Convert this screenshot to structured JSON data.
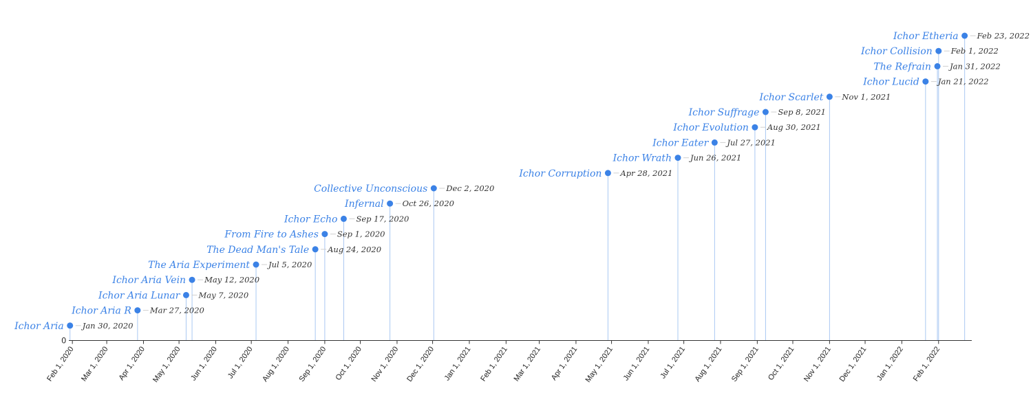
{
  "chart_data": {
    "type": "timeline",
    "title": "",
    "xlabel": "",
    "ylabel": "",
    "y_tick_label": "0",
    "x_range": [
      "2020-01-29",
      "2022-03-01"
    ],
    "x_ticks": [
      {
        "date": "2020-02-01",
        "label": "Feb 1, 2020"
      },
      {
        "date": "2020-03-01",
        "label": "Mar 1, 2020"
      },
      {
        "date": "2020-04-01",
        "label": "Apr 1, 2020"
      },
      {
        "date": "2020-05-01",
        "label": "May 1, 2020"
      },
      {
        "date": "2020-06-01",
        "label": "Jun 1, 2020"
      },
      {
        "date": "2020-07-01",
        "label": "Jul 1, 2020"
      },
      {
        "date": "2020-08-01",
        "label": "Aug 1, 2020"
      },
      {
        "date": "2020-09-01",
        "label": "Sep 1, 2020"
      },
      {
        "date": "2020-10-01",
        "label": "Oct 1, 2020"
      },
      {
        "date": "2020-11-01",
        "label": "Nov 1, 2020"
      },
      {
        "date": "2020-12-01",
        "label": "Dec 1, 2020"
      },
      {
        "date": "2021-01-01",
        "label": "Jan 1, 2021"
      },
      {
        "date": "2021-02-01",
        "label": "Feb 1, 2021"
      },
      {
        "date": "2021-03-01",
        "label": "Mar 1, 2021"
      },
      {
        "date": "2021-04-01",
        "label": "Apr 1, 2021"
      },
      {
        "date": "2021-05-01",
        "label": "May 1, 2021"
      },
      {
        "date": "2021-06-01",
        "label": "Jun 1, 2021"
      },
      {
        "date": "2021-07-01",
        "label": "Jul 1, 2021"
      },
      {
        "date": "2021-08-01",
        "label": "Aug 1, 2021"
      },
      {
        "date": "2021-09-01",
        "label": "Sep 1, 2021"
      },
      {
        "date": "2021-10-01",
        "label": "Oct 1, 2021"
      },
      {
        "date": "2021-11-01",
        "label": "Nov 1, 2021"
      },
      {
        "date": "2021-12-01",
        "label": "Dec 1, 2021"
      },
      {
        "date": "2022-01-01",
        "label": "Jan 1, 2022"
      },
      {
        "date": "2022-02-01",
        "label": "Feb 1, 2022"
      }
    ],
    "events": [
      {
        "name": "Ichor Aria",
        "date": "2020-01-30",
        "date_label": "Jan 30, 2020"
      },
      {
        "name": "Ichor Aria R",
        "date": "2020-03-27",
        "date_label": "Mar 27, 2020"
      },
      {
        "name": "Ichor Aria Lunar",
        "date": "2020-05-07",
        "date_label": "May 7, 2020"
      },
      {
        "name": "Ichor Aria Vein",
        "date": "2020-05-12",
        "date_label": "May 12, 2020"
      },
      {
        "name": "The Aria Experiment",
        "date": "2020-07-05",
        "date_label": "Jul 5, 2020"
      },
      {
        "name": "The Dead Man's Tale",
        "date": "2020-08-24",
        "date_label": "Aug 24, 2020"
      },
      {
        "name": "From Fire to Ashes",
        "date": "2020-09-01",
        "date_label": "Sep 1, 2020"
      },
      {
        "name": "Ichor Echo",
        "date": "2020-09-17",
        "date_label": "Sep 17, 2020"
      },
      {
        "name": "Infernal",
        "date": "2020-10-26",
        "date_label": "Oct 26, 2020"
      },
      {
        "name": "Collective Unconscious",
        "date": "2020-12-02",
        "date_label": "Dec 2, 2020"
      },
      {
        "name": "Ichor Corruption",
        "date": "2021-04-28",
        "date_label": "Apr 28, 2021"
      },
      {
        "name": "Ichor Wrath",
        "date": "2021-06-26",
        "date_label": "Jun 26, 2021"
      },
      {
        "name": "Ichor Eater",
        "date": "2021-07-27",
        "date_label": "Jul 27, 2021"
      },
      {
        "name": "Ichor Evolution",
        "date": "2021-08-30",
        "date_label": "Aug 30, 2021"
      },
      {
        "name": "Ichor Suffrage",
        "date": "2021-09-08",
        "date_label": "Sep 8, 2021"
      },
      {
        "name": "Ichor Scarlet",
        "date": "2021-11-01",
        "date_label": "Nov 1, 2021"
      },
      {
        "name": "Ichor Lucid",
        "date": "2022-01-21",
        "date_label": "Jan 21, 2022"
      },
      {
        "name": "The Refrain",
        "date": "2022-01-31",
        "date_label": "Jan 31, 2022"
      },
      {
        "name": "Ichor Collision",
        "date": "2022-02-01",
        "date_label": "Feb 1, 2022"
      },
      {
        "name": "Ichor Etheria",
        "date": "2022-02-23",
        "date_label": "Feb 23, 2022"
      }
    ],
    "colors": {
      "marker": "#3b82e6",
      "stem": "#a9c8f2",
      "name_text": "#3b82e6",
      "date_text": "#333333",
      "axis": "#333333"
    },
    "grid": false,
    "legend": "none"
  }
}
